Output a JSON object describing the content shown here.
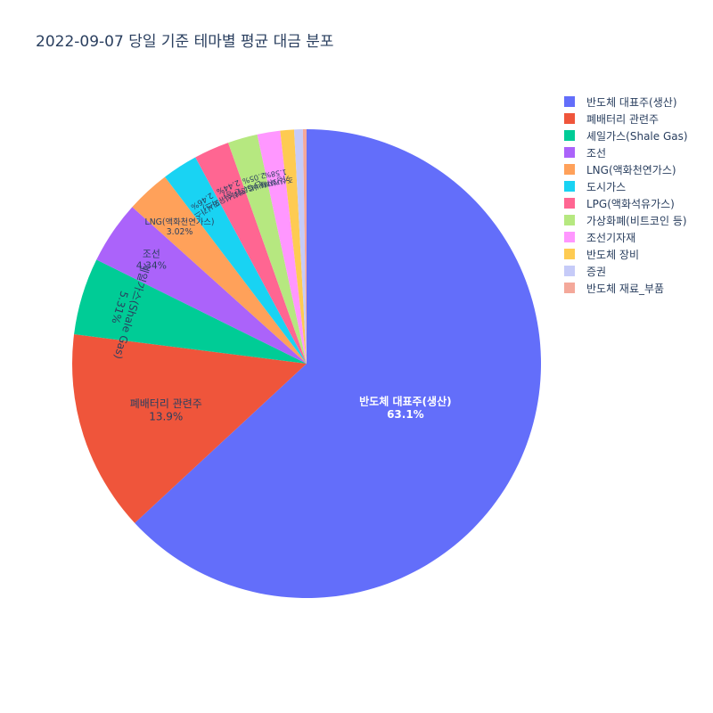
{
  "chart_data": {
    "type": "pie",
    "title": "2022-09-07 당일 기준 테마별 평균 대금 분포",
    "slices": [
      {
        "label": "반도체 대표주(생산)",
        "value": 63.1,
        "value_label": "63.1%",
        "color": "#636efa"
      },
      {
        "label": "폐배터리 관련주",
        "value": 13.9,
        "value_label": "13.9%",
        "color": "#ef553b"
      },
      {
        "label": "셰일가스(Shale Gas)",
        "value": 5.31,
        "value_label": "5.31%",
        "color": "#00cc96"
      },
      {
        "label": "조선",
        "value": 4.34,
        "value_label": "4.34%",
        "color": "#ab63fa"
      },
      {
        "label": "LNG(액화천연가스)",
        "value": 3.02,
        "value_label": "3.02%",
        "color": "#ffa15a"
      },
      {
        "label": "도시가스",
        "value": 2.46,
        "value_label": "2.46%",
        "color": "#19d3f3"
      },
      {
        "label": "LPG(액화석유가스)",
        "value": 2.44,
        "value_label": "2.44%",
        "color": "#ff6692"
      },
      {
        "label": "가상화폐(비트코인 등)",
        "value": 2.05,
        "value_label": "2.05%",
        "color": "#b6e880"
      },
      {
        "label": "조선기자재",
        "value": 1.58,
        "value_label": "1.58%",
        "color": "#ff97ff"
      },
      {
        "label": "반도체 장비",
        "value": 0.95,
        "value_label": "",
        "color": "#fecb52"
      },
      {
        "label": "증권",
        "value": 0.6,
        "value_label": "",
        "color": "#c6cbf8"
      },
      {
        "label": "반도체 재료_부품",
        "value": 0.25,
        "value_label": "",
        "color": "#f4a89a"
      }
    ],
    "legend": "top-right",
    "direction": "clockwise",
    "start": "top"
  }
}
